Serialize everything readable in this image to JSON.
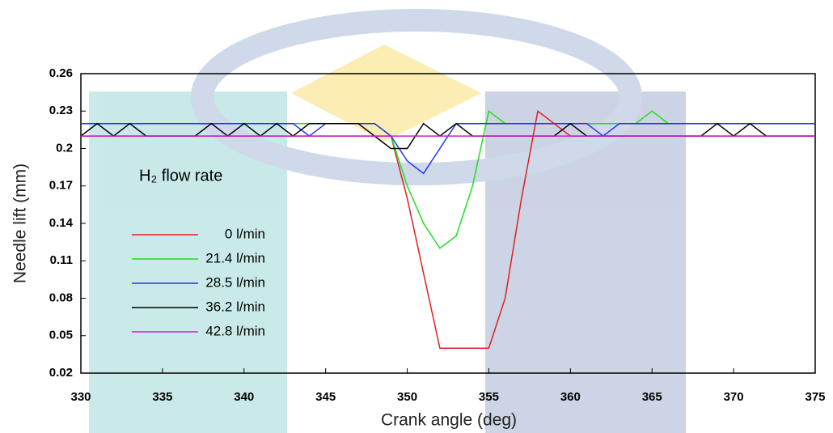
{
  "chart_data": {
    "type": "line",
    "x_label": "Crank angle (deg)",
    "y_label": "Needle lift (mm)",
    "legend_title": "H₂ flow rate",
    "x": [
      330,
      331,
      332,
      333,
      334,
      335,
      336,
      337,
      338,
      339,
      340,
      341,
      342,
      343,
      344,
      345,
      346,
      347,
      348,
      349,
      350,
      351,
      352,
      353,
      354,
      355,
      356,
      357,
      358,
      359,
      360,
      361,
      362,
      363,
      364,
      365,
      366,
      367,
      368,
      369,
      370,
      371,
      372,
      373,
      374,
      375
    ],
    "series": [
      {
        "name": "0 l/min",
        "color": "#e02020",
        "values": [
          0.21,
          0.21,
          0.21,
          0.21,
          0.21,
          0.21,
          0.21,
          0.21,
          0.21,
          0.21,
          0.21,
          0.21,
          0.21,
          0.21,
          0.21,
          0.21,
          0.21,
          0.21,
          0.21,
          0.21,
          0.16,
          0.1,
          0.04,
          0.04,
          0.04,
          0.04,
          0.08,
          0.16,
          0.23,
          0.22,
          0.21,
          0.21,
          0.21,
          0.21,
          0.21,
          0.21,
          0.21,
          0.21,
          0.21,
          0.21,
          0.21,
          0.21,
          0.21,
          0.21,
          0.21,
          0.21
        ]
      },
      {
        "name": "21.4 l/min",
        "color": "#22dd22",
        "values": [
          0.22,
          0.22,
          0.22,
          0.22,
          0.22,
          0.22,
          0.22,
          0.22,
          0.22,
          0.22,
          0.22,
          0.22,
          0.22,
          0.22,
          0.22,
          0.22,
          0.22,
          0.22,
          0.22,
          0.21,
          0.17,
          0.14,
          0.12,
          0.13,
          0.17,
          0.23,
          0.22,
          0.22,
          0.22,
          0.22,
          0.22,
          0.22,
          0.22,
          0.22,
          0.22,
          0.23,
          0.22,
          0.22,
          0.22,
          0.22,
          0.22,
          0.22,
          0.22,
          0.22,
          0.22,
          0.22
        ]
      },
      {
        "name": "28.5 l/min",
        "color": "#2233ee",
        "values": [
          0.22,
          0.22,
          0.22,
          0.22,
          0.22,
          0.22,
          0.22,
          0.22,
          0.22,
          0.22,
          0.22,
          0.22,
          0.22,
          0.22,
          0.21,
          0.22,
          0.22,
          0.22,
          0.22,
          0.21,
          0.19,
          0.18,
          0.2,
          0.22,
          0.22,
          0.22,
          0.22,
          0.22,
          0.22,
          0.22,
          0.22,
          0.22,
          0.21,
          0.22,
          0.22,
          0.22,
          0.22,
          0.22,
          0.22,
          0.22,
          0.22,
          0.22,
          0.22,
          0.22,
          0.22,
          0.22
        ]
      },
      {
        "name": "36.2 l/min",
        "color": "#000000",
        "values": [
          0.21,
          0.22,
          0.21,
          0.22,
          0.21,
          0.21,
          0.21,
          0.21,
          0.22,
          0.21,
          0.22,
          0.21,
          0.22,
          0.21,
          0.22,
          0.22,
          0.22,
          0.22,
          0.21,
          0.2,
          0.2,
          0.22,
          0.21,
          0.22,
          0.21,
          0.21,
          0.21,
          0.21,
          0.21,
          0.21,
          0.22,
          0.21,
          0.21,
          0.21,
          0.21,
          0.21,
          0.21,
          0.21,
          0.21,
          0.22,
          0.21,
          0.22,
          0.21,
          0.21,
          0.21,
          0.21
        ]
      },
      {
        "name": "42.8 l/min",
        "color": "#cc22cc",
        "values": [
          0.21,
          0.21,
          0.21,
          0.21,
          0.21,
          0.21,
          0.21,
          0.21,
          0.21,
          0.21,
          0.21,
          0.21,
          0.21,
          0.21,
          0.21,
          0.21,
          0.21,
          0.21,
          0.21,
          0.21,
          0.21,
          0.21,
          0.21,
          0.21,
          0.21,
          0.21,
          0.21,
          0.21,
          0.21,
          0.21,
          0.21,
          0.21,
          0.21,
          0.21,
          0.21,
          0.21,
          0.21,
          0.21,
          0.21,
          0.21,
          0.21,
          0.21,
          0.21,
          0.21,
          0.21,
          0.21
        ]
      }
    ],
    "xlim": [
      330,
      375
    ],
    "xticks": [
      330,
      335,
      340,
      345,
      350,
      355,
      360,
      365,
      370,
      375
    ],
    "ylim": [
      0.02,
      0.26
    ],
    "yticks": [
      0.02,
      0.05,
      0.08,
      0.11,
      0.14,
      0.17,
      0.2,
      0.23,
      0.26
    ]
  }
}
